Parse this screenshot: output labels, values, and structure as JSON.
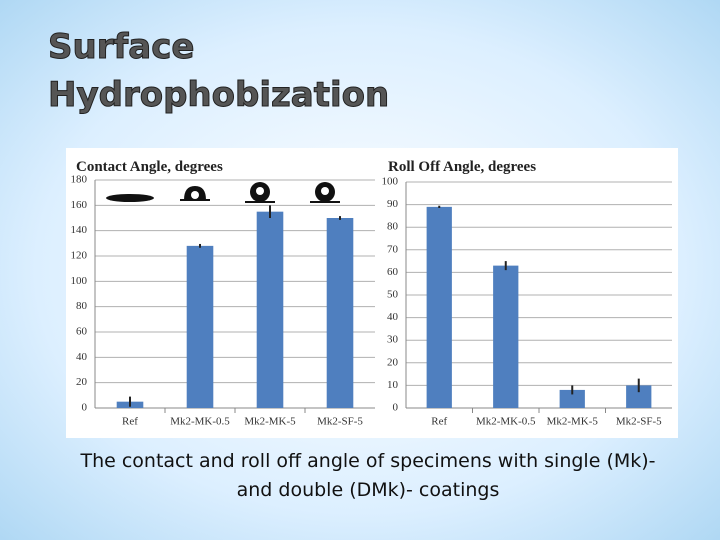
{
  "slide": {
    "title": [
      "Surface",
      "Hydrophobization"
    ],
    "caption": [
      "The contact and roll off angle of specimens with single (Mk)-",
      "and double (DMk)- coatings"
    ]
  },
  "chart_data": [
    {
      "type": "bar",
      "title": "Contact Angle, degrees",
      "categories": [
        "Ref",
        "Mk2-MK-0.5",
        "Mk2-MK-5",
        "Mk2-SF-5"
      ],
      "values": [
        5,
        128,
        155,
        150
      ],
      "errors": [
        4,
        1.5,
        5,
        1.5
      ],
      "color": "#4f7fbf",
      "ylim": [
        0,
        180
      ],
      "yticks": [
        0,
        20,
        40,
        60,
        80,
        100,
        120,
        140,
        160,
        180
      ],
      "grid": true
    },
    {
      "type": "bar",
      "title": "Roll Off Angle, degrees",
      "categories": [
        "Ref",
        "Mk2-MK-0.5",
        "Mk2-MK-5",
        "Mk2-SF-5"
      ],
      "values": [
        89,
        63,
        8,
        10
      ],
      "errors": [
        0.5,
        2,
        2,
        3
      ],
      "color": "#4f7fbf",
      "ylim": [
        0,
        100
      ],
      "yticks": [
        0,
        10,
        20,
        30,
        40,
        50,
        60,
        70,
        80,
        90,
        100
      ],
      "grid": true
    }
  ]
}
